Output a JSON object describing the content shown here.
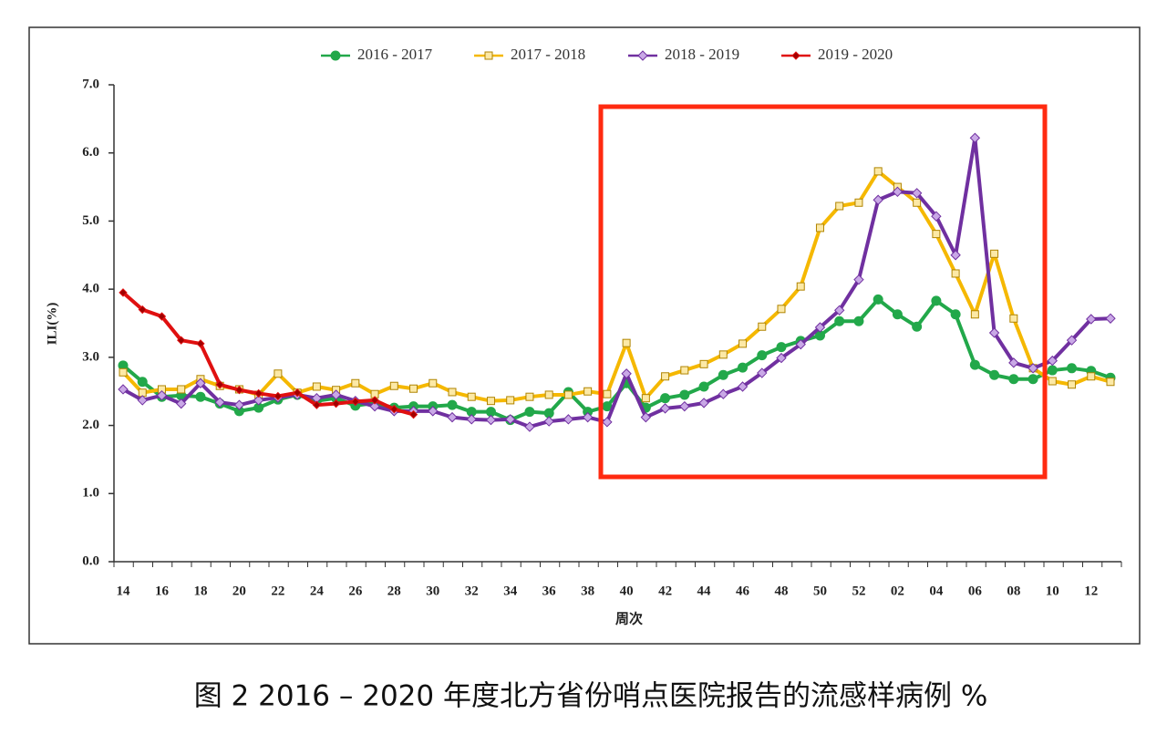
{
  "chart_data": {
    "type": "line",
    "caption": "图 2 2016 – 2020 年度北方省份哨点医院报告的流感样病例 %",
    "x_label": "周次",
    "y_label": "ILI(%)",
    "categories": [
      "14",
      null,
      "16",
      null,
      "18",
      null,
      "20",
      null,
      "22",
      null,
      "24",
      null,
      "26",
      null,
      "28",
      null,
      "30",
      null,
      "32",
      null,
      "34",
      null,
      "36",
      null,
      "38",
      null,
      "40",
      null,
      "42",
      null,
      "44",
      null,
      "46",
      null,
      "48",
      null,
      "50",
      null,
      "52",
      null,
      "02",
      null,
      "04",
      null,
      "06",
      null,
      "08",
      null,
      "10",
      null,
      "12",
      null
    ],
    "ylim": [
      0,
      7
    ],
    "yticks": [
      {
        "value": 0,
        "label": "0.0"
      },
      {
        "value": 1,
        "label": "1.0"
      },
      {
        "value": 2,
        "label": "2.0"
      },
      {
        "value": 3,
        "label": "3.0"
      },
      {
        "value": 4,
        "label": "4.0"
      },
      {
        "value": 5,
        "label": "5.0"
      },
      {
        "value": 6,
        "label": "6.0"
      },
      {
        "value": 7,
        "label": "7.0"
      }
    ],
    "grid": false,
    "legend": "top",
    "series": [
      {
        "name": "2016 - 2017",
        "color": "#22a84a",
        "marker": "circle",
        "values": [
          2.88,
          2.64,
          2.42,
          2.44,
          2.42,
          2.32,
          2.21,
          2.26,
          2.38,
          2.45,
          2.36,
          2.4,
          2.29,
          2.33,
          2.26,
          2.28,
          2.28,
          2.3,
          2.2,
          2.2,
          2.08,
          2.2,
          2.18,
          2.49,
          2.2,
          2.28,
          2.62,
          2.26,
          2.4,
          2.45,
          2.57,
          2.74,
          2.85,
          3.03,
          3.15,
          3.24,
          3.32,
          3.53,
          3.53,
          3.85,
          3.63,
          3.45,
          3.83,
          3.63,
          2.89,
          2.74,
          2.68,
          2.68,
          2.81,
          2.84,
          2.8,
          2.7
        ]
      },
      {
        "name": "2017 - 2018",
        "color": "#f5b800",
        "marker": "square",
        "values": [
          2.78,
          2.48,
          2.53,
          2.53,
          2.68,
          2.58,
          2.53,
          2.45,
          2.76,
          2.48,
          2.57,
          2.52,
          2.62,
          2.46,
          2.58,
          2.54,
          2.62,
          2.49,
          2.42,
          2.36,
          2.37,
          2.42,
          2.45,
          2.45,
          2.5,
          2.46,
          3.21,
          2.4,
          2.72,
          2.81,
          2.9,
          3.04,
          3.2,
          3.45,
          3.71,
          4.04,
          4.9,
          5.22,
          5.27,
          5.73,
          5.5,
          5.27,
          4.81,
          4.23,
          3.63,
          4.52,
          3.57,
          2.84,
          2.65,
          2.6,
          2.72,
          2.64
        ]
      },
      {
        "name": "2018 - 2019",
        "color": "#7030a0",
        "marker": "diamond",
        "values": [
          2.53,
          2.37,
          2.44,
          2.32,
          2.62,
          2.34,
          2.3,
          2.37,
          2.41,
          2.45,
          2.4,
          2.45,
          2.36,
          2.28,
          2.21,
          2.21,
          2.21,
          2.12,
          2.09,
          2.08,
          2.09,
          1.98,
          2.06,
          2.09,
          2.12,
          2.05,
          2.76,
          2.12,
          2.25,
          2.28,
          2.33,
          2.46,
          2.57,
          2.77,
          2.99,
          3.19,
          3.44,
          3.69,
          4.14,
          5.31,
          5.43,
          5.41,
          5.07,
          4.5,
          6.22,
          3.36,
          2.92,
          2.84,
          2.95,
          3.25,
          3.56,
          3.57
        ]
      },
      {
        "name": "2019 - 2020",
        "color": "#e01010",
        "marker": "small-diamond",
        "values": [
          3.95,
          3.7,
          3.6,
          3.25,
          3.2,
          2.6,
          2.52,
          2.47,
          2.43,
          2.48,
          2.3,
          2.32,
          2.35,
          2.37,
          2.24,
          2.16,
          null,
          null,
          null,
          null,
          null,
          null,
          null,
          null,
          null,
          null,
          null,
          null,
          null,
          null,
          null,
          null,
          null,
          null,
          null,
          null,
          null,
          null,
          null,
          null,
          null,
          null,
          null,
          null,
          null,
          null,
          null,
          null,
          null,
          null,
          null,
          null
        ]
      }
    ]
  }
}
